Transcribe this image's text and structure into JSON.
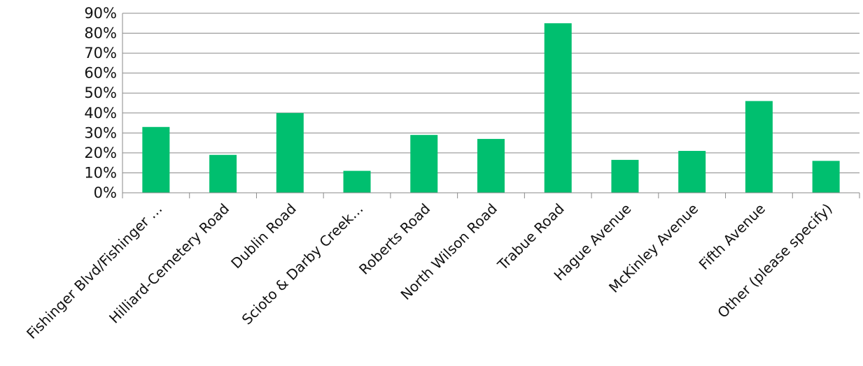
{
  "chart_data": {
    "type": "bar",
    "categories": [
      "Fishinger Blvd/Fishinger …",
      "Hilliard-Cemetery Road",
      "Dublin Road",
      "Scioto & Darby Creek…",
      "Roberts Road",
      "North Wilson Road",
      "Trabue Road",
      "Hague Avenue",
      "McKinley Avenue",
      "Fifth Avenue",
      "Other (please specify)"
    ],
    "values": [
      33,
      19,
      40,
      11,
      29,
      27,
      85,
      16.5,
      21,
      46,
      16
    ],
    "y_tick_labels": [
      "0%",
      "10%",
      "20%",
      "30%",
      "40%",
      "50%",
      "60%",
      "70%",
      "80%",
      "90%"
    ],
    "ylim": [
      0,
      90
    ],
    "title": "",
    "xlabel": "",
    "ylabel": "",
    "grid": "horizontal",
    "legend": "none",
    "bar_color": "#00BF6F",
    "gridline_color": "#8a8a8a"
  }
}
